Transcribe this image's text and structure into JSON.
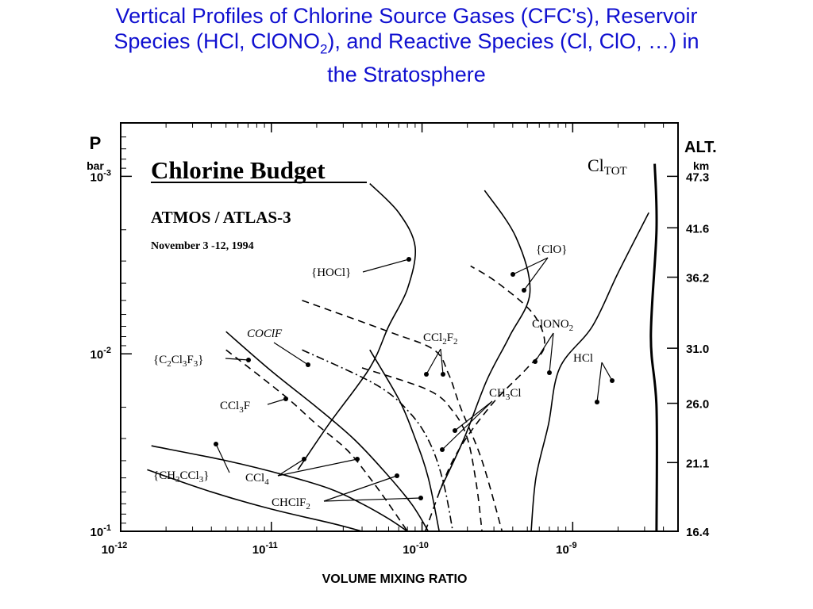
{
  "slide": {
    "title_line1": "Vertical Profiles of Chlorine Source Gases (CFC's), Reservoir",
    "title_line2_pre": "Species (HCl, ClONO",
    "title_line2_sub": "2",
    "title_line2_post": "), and Reactive Species (Cl, ClO, …) in",
    "title_line3": "the Stratosphere"
  },
  "chart_data": {
    "type": "line",
    "title": "Chlorine Budget",
    "subtitle": "ATMOS / ATLAS-3",
    "date": "November 3 -12, 1994",
    "xlabel": "VOLUME MIXING RATIO",
    "x_scale": "log",
    "xlim": [
      1e-12,
      5e-09
    ],
    "x_ticks": [
      {
        "value": 1e-12,
        "mant": "10",
        "exp": "-12"
      },
      {
        "value": 1e-11,
        "mant": "10",
        "exp": "-11"
      },
      {
        "value": 1e-10,
        "mant": "10",
        "exp": "-10"
      },
      {
        "value": 1e-09,
        "mant": "10",
        "exp": "-9"
      }
    ],
    "left_axis": {
      "label": "P",
      "unit": "bar",
      "scale": "log",
      "range": [
        0.1,
        0.0005
      ],
      "ticks": [
        {
          "value": 0.001,
          "mant": "10",
          "exp": "-3"
        },
        {
          "value": 0.01,
          "mant": "10",
          "exp": "-2"
        },
        {
          "value": 0.1,
          "mant": "10",
          "exp": "-1"
        }
      ]
    },
    "right_axis": {
      "label": "ALT.",
      "unit": "km",
      "ticks": [
        "47.3",
        "41.6",
        "36.2",
        "31.0",
        "26.0",
        "21.1",
        "16.4"
      ],
      "tick_pressures": [
        0.001,
        0.00195,
        0.0037,
        0.0093,
        0.019,
        0.041,
        0.1
      ]
    },
    "series": [
      {
        "name": "Cl",
        "name_sub": "TOT",
        "style": "solid-bold",
        "label_pos": "top-right",
        "points": [
          [
            3.6e-09,
            0.1
          ],
          [
            3.6e-09,
            0.02
          ],
          [
            3.3e-09,
            0.008
          ],
          [
            3.6e-09,
            0.002
          ],
          [
            3.5e-09,
            0.00085
          ]
        ]
      },
      {
        "name": "{HOCl}",
        "style": "solid",
        "label_pos": "upper-left",
        "points": [
          [
            1.5e-11,
            0.045
          ],
          [
            2.4e-11,
            0.025
          ],
          [
            4.5e-11,
            0.012
          ],
          [
            6e-11,
            0.007
          ],
          [
            8e-11,
            0.0043
          ],
          [
            9e-11,
            0.0025
          ],
          [
            7e-11,
            0.0016
          ],
          [
            4.5e-11,
            0.0011
          ]
        ]
      },
      {
        "name": "{ClO}",
        "style": "solid",
        "label_pos": "upper-middle",
        "points": [
          [
            1.3e-10,
            0.06
          ],
          [
            1.9e-10,
            0.03
          ],
          [
            2.7e-10,
            0.014
          ],
          [
            3.8e-10,
            0.008
          ],
          [
            5.2e-10,
            0.0045
          ],
          [
            4.2e-10,
            0.0022
          ],
          [
            2.6e-10,
            0.0012
          ]
        ]
      },
      {
        "name": "ClONO",
        "name_sub": "2",
        "style": "dashed",
        "label_pos": "middle-right",
        "points": [
          [
            1.05e-10,
            0.1
          ],
          [
            1.6e-10,
            0.04
          ],
          [
            2.8e-10,
            0.02
          ],
          [
            5e-10,
            0.012
          ],
          [
            6.5e-10,
            0.009
          ],
          [
            5.5e-10,
            0.006
          ],
          [
            3.2e-10,
            0.004
          ],
          [
            2.1e-10,
            0.0032
          ]
        ]
      },
      {
        "name": "HCl",
        "style": "solid",
        "label_pos": "middle-right",
        "points": [
          [
            5.3e-10,
            0.1
          ],
          [
            5.7e-10,
            0.05
          ],
          [
            6.9e-10,
            0.025
          ],
          [
            8.2e-10,
            0.012
          ],
          [
            1.35e-09,
            0.007
          ],
          [
            2e-09,
            0.0035
          ],
          [
            3.2e-09,
            0.0016
          ]
        ]
      },
      {
        "name": "CCl",
        "name_sub": "2",
        "name_post": "F",
        "name_sub2": "2",
        "style": "dashed",
        "label_pos": "middle",
        "points": [
          [
            1.6e-11,
            0.005
          ],
          [
            6e-11,
            0.0075
          ],
          [
            1.2e-10,
            0.0095
          ],
          [
            1.5e-10,
            0.013
          ],
          [
            1.8e-10,
            0.02
          ],
          [
            2.5e-10,
            0.04
          ],
          [
            3.4e-10,
            0.1
          ]
        ]
      },
      {
        "name": "CH",
        "name_sub": "3",
        "name_post": "Cl",
        "style": "dashed",
        "label_pos": "middle-right",
        "points": [
          [
            4e-11,
            0.012
          ],
          [
            1.1e-10,
            0.016
          ],
          [
            1.6e-10,
            0.021
          ],
          [
            2e-10,
            0.03
          ],
          [
            2.3e-10,
            0.055
          ],
          [
            2.5e-10,
            0.1
          ]
        ]
      },
      {
        "name": "COClF",
        "style": "dash-dot",
        "label_pos": "middle-left",
        "points": [
          [
            1.6e-11,
            0.0095
          ],
          [
            5e-11,
            0.015
          ],
          [
            8.5e-11,
            0.022
          ],
          [
            1.15e-10,
            0.033
          ],
          [
            1.4e-10,
            0.055
          ],
          [
            1.6e-10,
            0.1
          ]
        ]
      },
      {
        "name": "{C",
        "name_sub": "2",
        "name_post": "Cl",
        "name_sub2": "3",
        "name_post2": "F",
        "name_sub3": "3",
        "name_post3": "}",
        "style": "solid",
        "label_pos": "middle-left",
        "points": [
          [
            4.5e-11,
            0.0095
          ],
          [
            7e-11,
            0.018
          ],
          [
            9e-11,
            0.03
          ],
          [
            1.1e-10,
            0.05
          ],
          [
            1.3e-10,
            0.1
          ]
        ]
      },
      {
        "name": "CCl",
        "name_sub": "3",
        "name_post": "F",
        "style": "solid",
        "label_pos": "middle-left",
        "points": [
          [
            5e-12,
            0.0075
          ],
          [
            1e-11,
            0.0125
          ],
          [
            2e-11,
            0.02
          ],
          [
            3.5e-11,
            0.03
          ],
          [
            5.5e-11,
            0.045
          ],
          [
            8.5e-11,
            0.07
          ],
          [
            1.1e-10,
            0.1
          ]
        ]
      },
      {
        "name": "CCl",
        "name_sub": "4",
        "style": "dashed",
        "label_pos": "lower-left",
        "points": [
          [
            5e-12,
            0.0095
          ],
          [
            1.2e-11,
            0.017
          ],
          [
            2e-11,
            0.025
          ],
          [
            3.2e-11,
            0.035
          ],
          [
            4.5e-11,
            0.05
          ],
          [
            6e-11,
            0.07
          ],
          [
            8e-11,
            0.1
          ]
        ]
      },
      {
        "name": "{CH",
        "name_sub": "3",
        "name_post": "CCl",
        "name_sub2": "3",
        "name_post2": "}",
        "style": "solid",
        "label_pos": "lower-left",
        "points": [
          [
            1.6e-12,
            0.033
          ],
          [
            5e-12,
            0.04
          ],
          [
            1.2e-11,
            0.048
          ],
          [
            2.5e-11,
            0.058
          ],
          [
            4e-11,
            0.07
          ],
          [
            6e-11,
            0.085
          ],
          [
            8e-11,
            0.1
          ]
        ]
      },
      {
        "name": "CHClF",
        "name_sub": "2",
        "style": "solid",
        "label_pos": "lower-left",
        "points": [
          [
            1.5e-12,
            0.045
          ],
          [
            4e-12,
            0.06
          ],
          [
            1e-11,
            0.075
          ],
          [
            2.5e-11,
            0.09
          ],
          [
            4e-11,
            0.1
          ]
        ]
      }
    ]
  }
}
